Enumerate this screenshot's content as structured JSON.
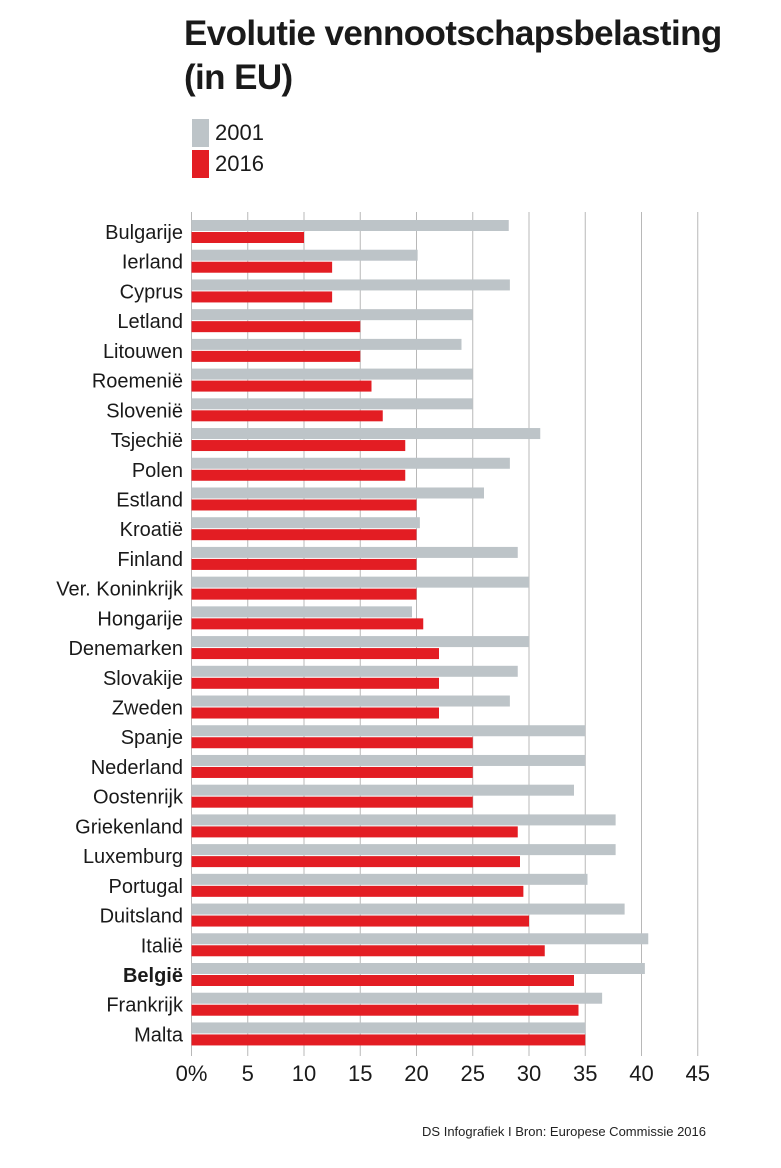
{
  "title_lines": [
    "Evolutie vennootschapsbelasting",
    "(in EU)"
  ],
  "source": "DS Infografiek I Bron: Europese Commissie 2016",
  "colors": {
    "2001": "#bdc4c8",
    "2016": "#e31d23",
    "grid": "#b8b8b8",
    "text": "#1a1a1a"
  },
  "chart_data": {
    "type": "bar",
    "orientation": "horizontal",
    "title": "Evolutie vennootschapsbelasting (in EU)",
    "xlabel": "",
    "ylabel": "",
    "xlim": [
      0,
      45
    ],
    "x_ticks": [
      "0%",
      "5",
      "10",
      "15",
      "20",
      "25",
      "30",
      "35",
      "40",
      "45"
    ],
    "grid": "vertical",
    "legend_position": "top-left",
    "highlight": "België",
    "categories": [
      "Bulgarije",
      "Ierland",
      "Cyprus",
      "Letland",
      "Litouwen",
      "Roemenië",
      "Slovenië",
      "Tsjechië",
      "Polen",
      "Estland",
      "Kroatië",
      "Finland",
      "Ver. Koninkrijk",
      "Hongarije",
      "Denemarken",
      "Slovakije",
      "Zweden",
      "Spanje",
      "Nederland",
      "Oostenrijk",
      "Griekenland",
      "Luxemburg",
      "Portugal",
      "Duitsland",
      "Italië",
      "België",
      "Frankrijk",
      "Malta"
    ],
    "series": [
      {
        "name": "2001",
        "values": [
          28.2,
          20.1,
          28.3,
          25,
          24,
          25,
          25,
          31,
          28.3,
          26,
          20.3,
          29,
          30,
          19.6,
          30,
          29,
          28.3,
          35,
          35,
          34,
          37.7,
          37.7,
          35.2,
          38.5,
          40.6,
          40.3,
          36.5,
          35
        ]
      },
      {
        "name": "2016",
        "values": [
          10,
          12.5,
          12.5,
          15,
          15,
          16,
          17,
          19,
          19,
          20,
          20,
          20,
          20,
          20.6,
          22,
          22,
          22,
          25,
          25,
          25,
          29,
          29.2,
          29.5,
          30,
          31.4,
          34,
          34.4,
          35
        ]
      }
    ]
  }
}
